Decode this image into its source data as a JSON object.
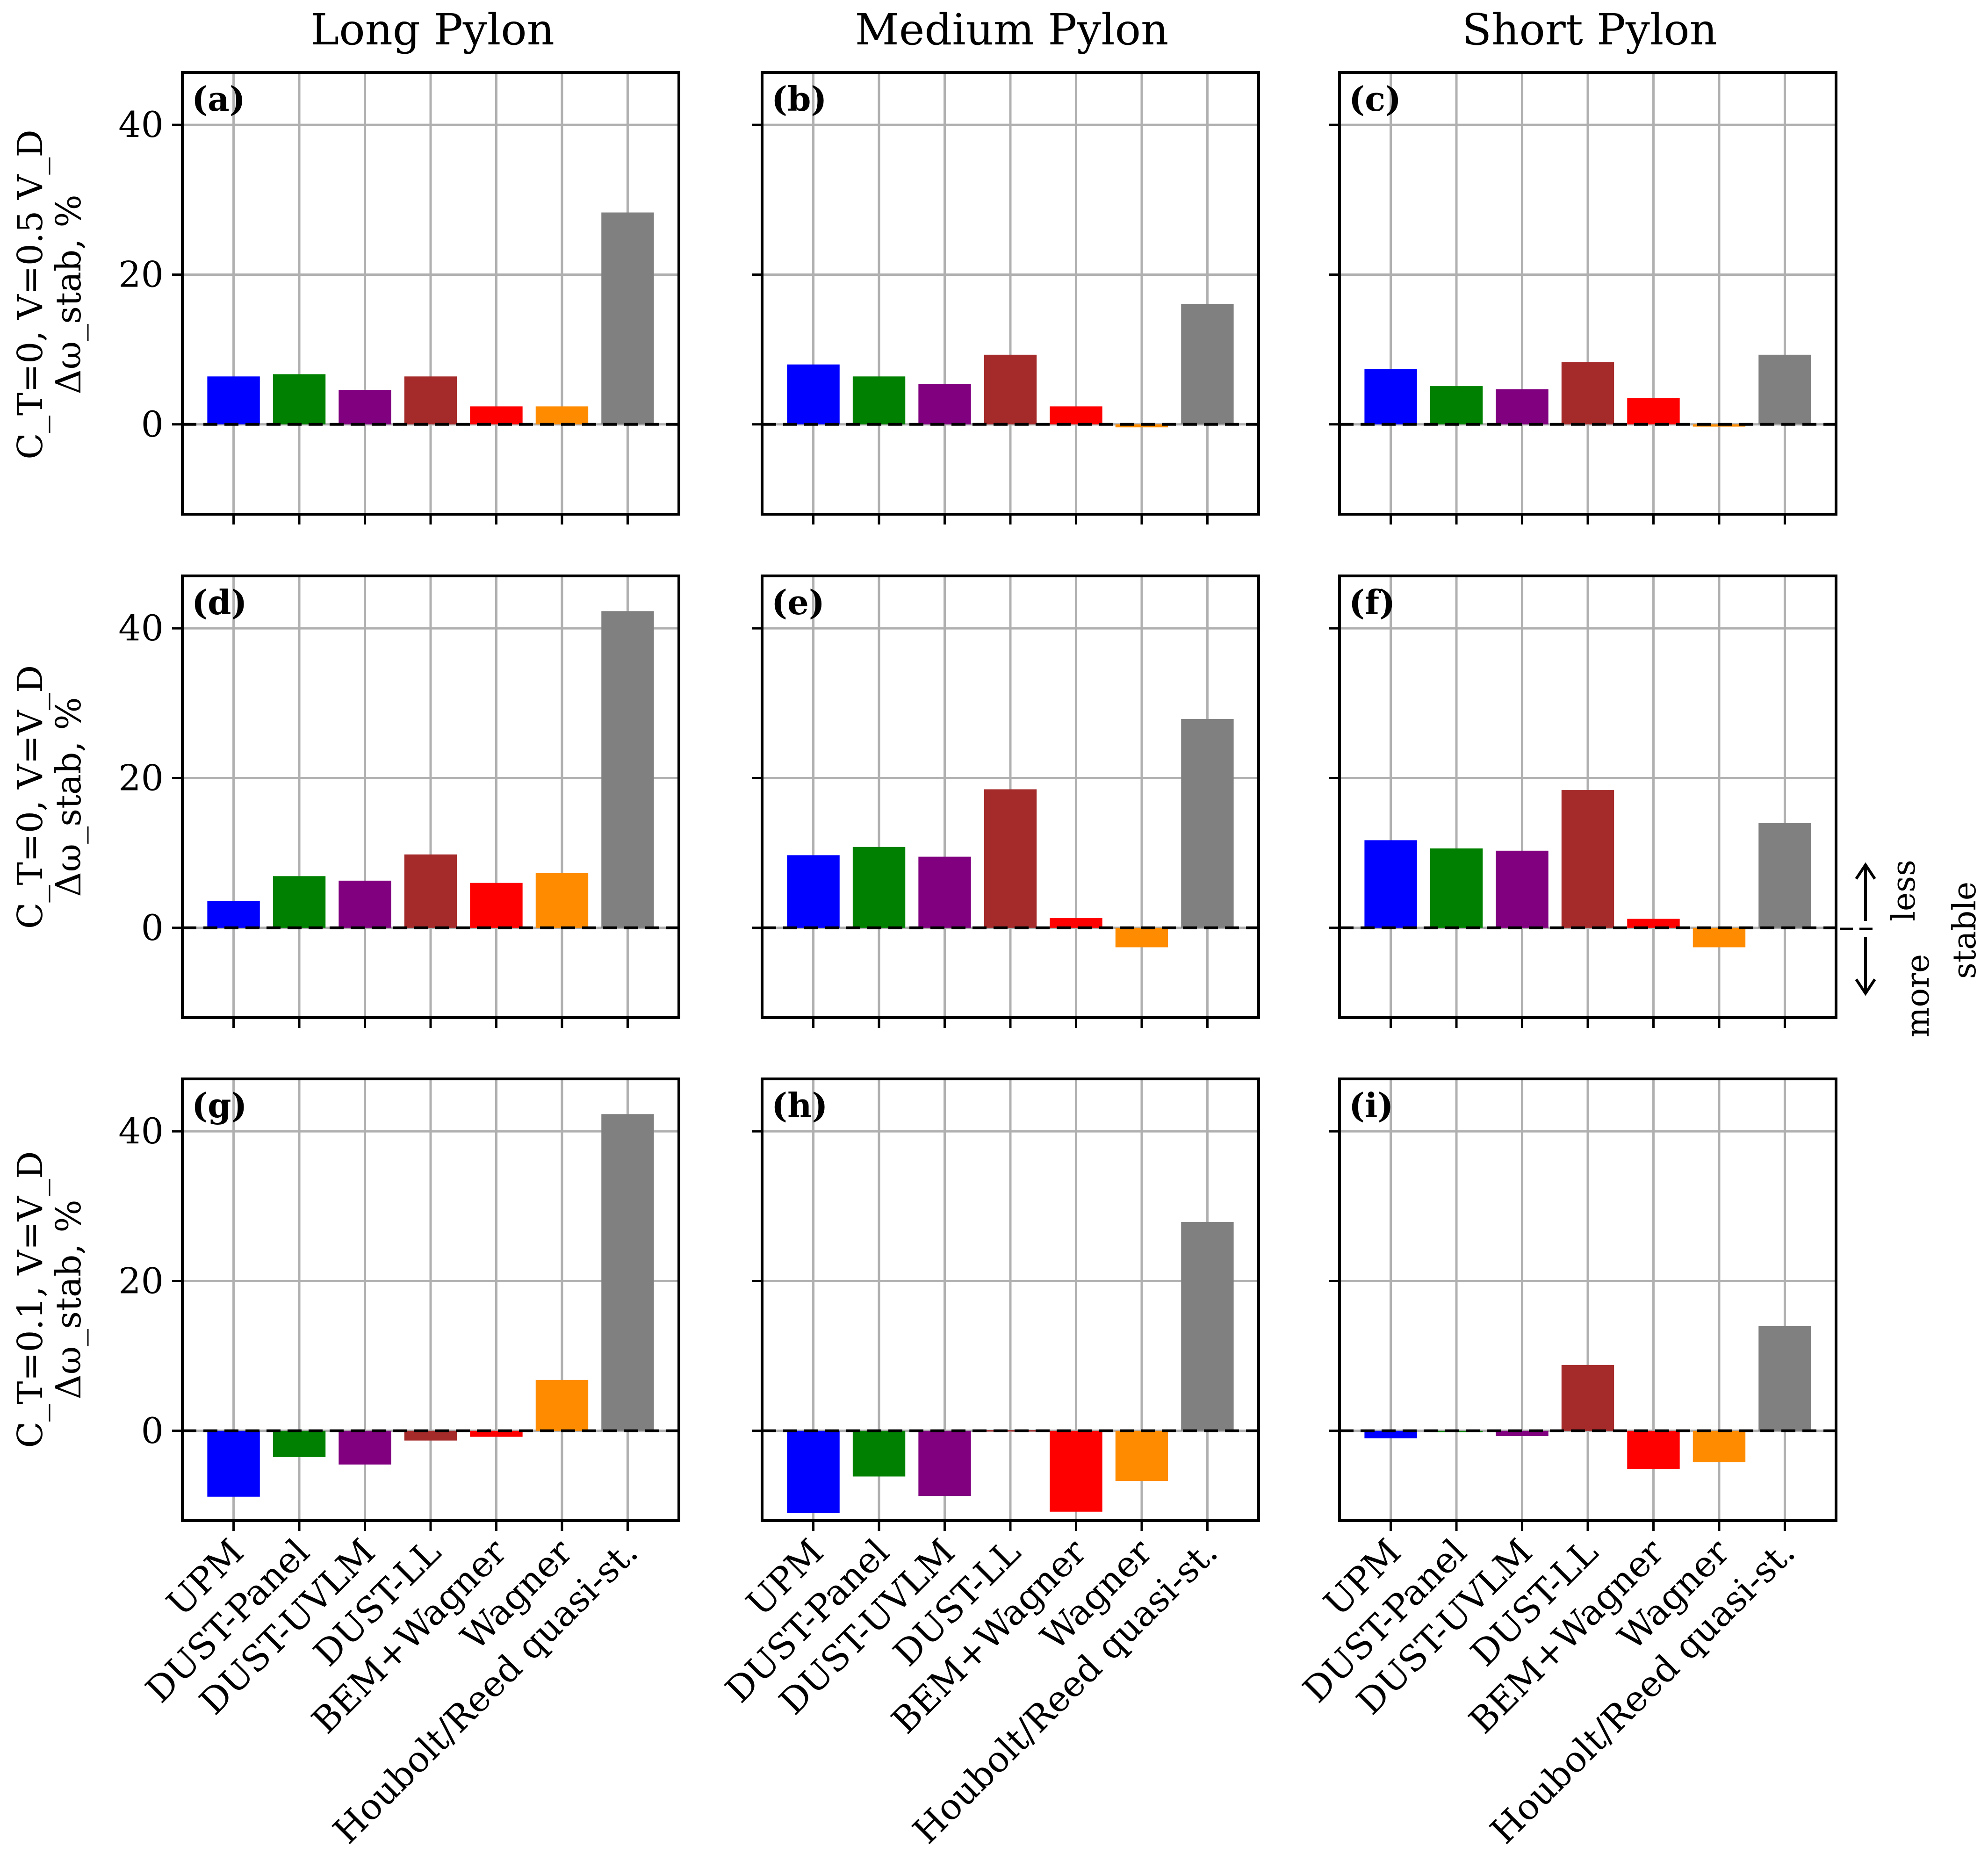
{
  "figure": {
    "column_titles": [
      "Long Pylon",
      "Medium Pylon",
      "Short Pylon"
    ],
    "row_ylabels": [
      {
        "line1": "C_T=0, V=0.5 V_D",
        "line2": "Δω_stab, %"
      },
      {
        "line1": "C_T=0, V=V_D",
        "line2": "Δω_stab, %"
      },
      {
        "line1": "C_T=0.1, V=V_D",
        "line2": "Δω_stab, %"
      }
    ],
    "stability_annotation": {
      "less": "less",
      "more": "more",
      "stable": "stable"
    }
  },
  "chart_data": [
    {
      "type": "bar",
      "panel": "(a)",
      "column": "Long Pylon",
      "row": "C_T=0, V=0.5 V_D",
      "title": "Long Pylon",
      "ylabel": "Δω_stab, %",
      "categories": [
        "UPM",
        "DUST-Panel",
        "DUST-UVLM",
        "DUST-LL",
        "BEM+Wagner",
        "Wagner",
        "Houbolt/Reed quasi-st."
      ],
      "values": [
        6.4,
        6.7,
        4.6,
        6.4,
        2.4,
        2.4,
        28.3
      ],
      "ylim": [
        -12,
        47
      ],
      "yticks": [
        0,
        20,
        40
      ],
      "grid": true
    },
    {
      "type": "bar",
      "panel": "(b)",
      "column": "Medium Pylon",
      "row": "C_T=0, V=0.5 V_D",
      "title": "Medium Pylon",
      "ylabel": "Δω_stab, %",
      "categories": [
        "UPM",
        "DUST-Panel",
        "DUST-UVLM",
        "DUST-LL",
        "BEM+Wagner",
        "Wagner",
        "Houbolt/Reed quasi-st."
      ],
      "values": [
        8.0,
        6.4,
        5.4,
        9.3,
        2.4,
        -0.4,
        16.1
      ],
      "ylim": [
        -12,
        47
      ],
      "yticks": [
        0,
        20,
        40
      ],
      "grid": true
    },
    {
      "type": "bar",
      "panel": "(c)",
      "column": "Short Pylon",
      "row": "C_T=0, V=0.5 V_D",
      "title": "Short Pylon",
      "ylabel": "Δω_stab, %",
      "categories": [
        "UPM",
        "DUST-Panel",
        "DUST-UVLM",
        "DUST-LL",
        "BEM+Wagner",
        "Wagner",
        "Houbolt/Reed quasi-st."
      ],
      "values": [
        7.4,
        5.1,
        4.7,
        8.3,
        3.5,
        -0.3,
        9.3
      ],
      "ylim": [
        -12,
        47
      ],
      "yticks": [
        0,
        20,
        40
      ],
      "grid": true
    },
    {
      "type": "bar",
      "panel": "(d)",
      "column": "Long Pylon",
      "row": "C_T=0, V=V_D",
      "title": "",
      "ylabel": "Δω_stab, %",
      "categories": [
        "UPM",
        "DUST-Panel",
        "DUST-UVLM",
        "DUST-LL",
        "BEM+Wagner",
        "Wagner",
        "Houbolt/Reed quasi-st."
      ],
      "values": [
        3.6,
        6.9,
        6.3,
        9.8,
        6.0,
        7.3,
        42.3
      ],
      "ylim": [
        -12,
        47
      ],
      "yticks": [
        0,
        20,
        40
      ],
      "grid": true
    },
    {
      "type": "bar",
      "panel": "(e)",
      "column": "Medium Pylon",
      "row": "C_T=0, V=V_D",
      "title": "",
      "ylabel": "Δω_stab, %",
      "categories": [
        "UPM",
        "DUST-Panel",
        "DUST-UVLM",
        "DUST-LL",
        "BEM+Wagner",
        "Wagner",
        "Houbolt/Reed quasi-st."
      ],
      "values": [
        9.7,
        10.8,
        9.5,
        18.5,
        1.3,
        -2.6,
        27.9
      ],
      "ylim": [
        -12,
        47
      ],
      "yticks": [
        0,
        20,
        40
      ],
      "grid": true
    },
    {
      "type": "bar",
      "panel": "(f)",
      "column": "Short Pylon",
      "row": "C_T=0, V=V_D",
      "title": "",
      "ylabel": "Δω_stab, %",
      "categories": [
        "UPM",
        "DUST-Panel",
        "DUST-UVLM",
        "DUST-LL",
        "BEM+Wagner",
        "Wagner",
        "Houbolt/Reed quasi-st."
      ],
      "values": [
        11.7,
        10.6,
        10.3,
        18.4,
        1.2,
        -2.6,
        14.0
      ],
      "ylim": [
        -12,
        47
      ],
      "yticks": [
        0,
        20,
        40
      ],
      "grid": true
    },
    {
      "type": "bar",
      "panel": "(g)",
      "column": "Long Pylon",
      "row": "C_T=0.1, V=V_D",
      "title": "",
      "ylabel": "Δω_stab, %",
      "categories": [
        "UPM",
        "DUST-Panel",
        "DUST-UVLM",
        "DUST-LL",
        "BEM+Wagner",
        "Wagner",
        "Houbolt/Reed quasi-st."
      ],
      "values": [
        -8.8,
        -3.5,
        -4.5,
        -1.3,
        -0.8,
        6.8,
        42.3
      ],
      "ylim": [
        -12,
        47
      ],
      "yticks": [
        0,
        20,
        40
      ],
      "grid": true
    },
    {
      "type": "bar",
      "panel": "(h)",
      "column": "Medium Pylon",
      "row": "C_T=0.1, V=V_D",
      "title": "",
      "ylabel": "Δω_stab, %",
      "categories": [
        "UPM",
        "DUST-Panel",
        "DUST-UVLM",
        "DUST-LL",
        "BEM+Wagner",
        "Wagner",
        "Houbolt/Reed quasi-st."
      ],
      "values": [
        -11.0,
        -6.1,
        -8.7,
        0.0,
        -10.8,
        -6.7,
        27.9
      ],
      "ylim": [
        -12,
        47
      ],
      "yticks": [
        0,
        20,
        40
      ],
      "grid": true
    },
    {
      "type": "bar",
      "panel": "(i)",
      "column": "Short Pylon",
      "row": "C_T=0.1, V=V_D",
      "title": "",
      "ylabel": "Δω_stab, %",
      "categories": [
        "UPM",
        "DUST-Panel",
        "DUST-UVLM",
        "DUST-LL",
        "BEM+Wagner",
        "Wagner",
        "Houbolt/Reed quasi-st."
      ],
      "values": [
        -1.0,
        -0.2,
        -0.7,
        8.8,
        -5.1,
        -4.2,
        14.0
      ],
      "ylim": [
        -12,
        47
      ],
      "yticks": [
        0,
        20,
        40
      ],
      "grid": true
    }
  ],
  "colors": [
    "#0000ff",
    "#008000",
    "#800080",
    "#a52a2a",
    "#ff0000",
    "#ff8c00",
    "#808080"
  ]
}
